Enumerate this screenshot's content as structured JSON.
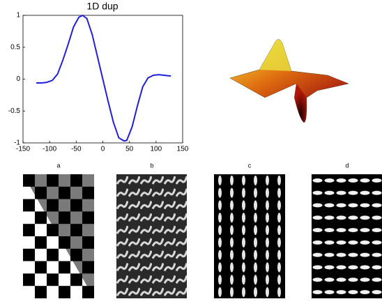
{
  "chart_data": {
    "type": "line",
    "title": "1D dup",
    "x": [
      -125,
      -115,
      -105,
      -95,
      -85,
      -75,
      -65,
      -55,
      -45,
      -38,
      -30,
      -20,
      -10,
      0,
      10,
      20,
      30,
      40,
      45,
      55,
      65,
      75,
      85,
      95,
      105,
      115,
      125,
      128
    ],
    "values": [
      -0.06,
      -0.06,
      -0.05,
      -0.02,
      0.08,
      0.3,
      0.55,
      0.82,
      0.97,
      1.0,
      0.95,
      0.7,
      0.35,
      0.0,
      -0.35,
      -0.68,
      -0.92,
      -0.97,
      -0.96,
      -0.75,
      -0.42,
      -0.12,
      0.02,
      0.06,
      0.07,
      0.06,
      0.05,
      0.05
    ],
    "color": "#1f1fe0",
    "xlim": [
      -150,
      150
    ],
    "xticks": [
      -150,
      -100,
      -50,
      0,
      50,
      100,
      150
    ],
    "ylim": [
      -1,
      1
    ],
    "yticks": [
      -1,
      -0.5,
      0,
      0.5,
      1
    ],
    "grid": false
  },
  "panels": {
    "labels": [
      "a",
      "b",
      "c",
      "d"
    ]
  }
}
